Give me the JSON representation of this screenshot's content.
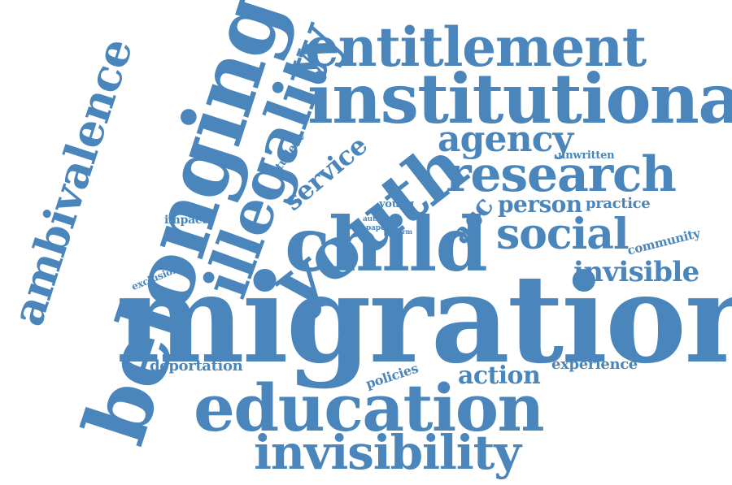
{
  "word_color": "#4a86bb",
  "background": "#ffffff",
  "words": [
    "migration",
    "belonging",
    "child",
    "education",
    "institutional",
    "youth",
    "illegality",
    "entitlement",
    "research",
    "invisibility",
    "ambivalence",
    "social",
    "agency",
    "invisible",
    "action",
    "service",
    "person",
    "acc",
    "practice",
    "experience",
    "deportation",
    "community",
    "policies",
    "impact",
    "student",
    "exclusion",
    "unwritten",
    "young",
    "author",
    "paper",
    "form",
    "y"
  ]
}
